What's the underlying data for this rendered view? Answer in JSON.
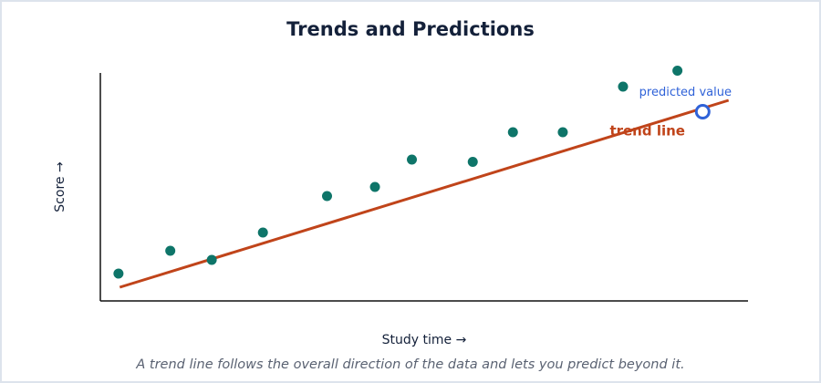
{
  "chart_data": {
    "type": "scatter",
    "title": "Trends and Predictions",
    "x_label": "Study time →",
    "y_label": "Score →",
    "caption": "A trend line follows the overall direction of the data and lets you predict beyond it.",
    "x": [
      2.8,
      10.8,
      17.2,
      25.1,
      35,
      42.4,
      48.1,
      57.5,
      63.7,
      71.4,
      80.7,
      89.1
    ],
    "values": [
      12,
      22,
      18,
      30,
      46,
      50,
      62,
      61,
      74,
      74,
      94,
      101
    ],
    "color": "#0e7569",
    "trend_line": {
      "name": "trend line",
      "color": "#c0441a",
      "x": [
        3,
        97
      ],
      "y": [
        6,
        88
      ]
    },
    "prediction": {
      "label": "predicted value",
      "color": "#2f62d8",
      "x": 93,
      "y": 83
    },
    "xlim": [
      0,
      100
    ],
    "ylim": [
      0,
      100
    ]
  }
}
